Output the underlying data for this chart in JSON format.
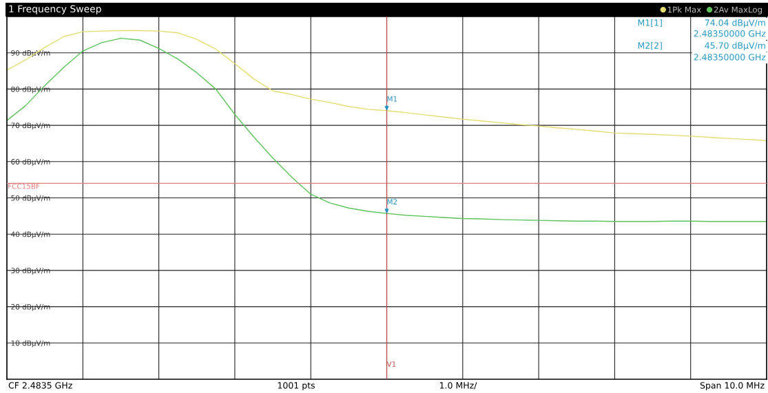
{
  "chart_data": {
    "type": "line",
    "title": "1 Frequency Sweep",
    "categories": [
      null,
      null,
      null,
      null,
      null,
      null,
      null,
      null,
      null,
      null,
      null,
      null,
      null,
      null,
      null,
      null,
      null,
      null,
      null,
      null,
      null,
      null,
      null,
      null,
      null,
      null,
      null,
      null,
      null,
      null,
      null,
      null,
      null,
      null,
      null,
      null,
      null,
      null,
      null,
      null,
      null
    ],
    "series": [
      {
        "name": "1Pk Max",
        "color": "#e3dc6e",
        "values": [
          85.2,
          88.1,
          91.5,
          94.5,
          95.8,
          96.0,
          96.1,
          96.1,
          96.0,
          95.5,
          93.7,
          91.0,
          87.0,
          82.8,
          79.5,
          78.5,
          77.2,
          76.3,
          75.2,
          74.4,
          74.04,
          73.5,
          72.9,
          72.3,
          71.7,
          71.2,
          70.7,
          70.2,
          69.8,
          69.3,
          68.9,
          68.4,
          67.9,
          67.7,
          67.5,
          67.3,
          67.0,
          66.7,
          66.4,
          66.1,
          65.8
        ]
      },
      {
        "name": "2Av MaxLog",
        "color": "#5cc25c",
        "values": [
          71.3,
          75.5,
          81.0,
          86.0,
          90.5,
          92.8,
          94.0,
          93.5,
          91.2,
          88.3,
          84.5,
          80.0,
          73.0,
          66.8,
          61.0,
          55.7,
          51.0,
          48.6,
          47.2,
          46.3,
          45.7,
          45.2,
          44.9,
          44.6,
          44.3,
          44.2,
          44.0,
          43.9,
          43.8,
          43.7,
          43.6,
          43.6,
          43.5,
          43.5,
          43.5,
          43.6,
          43.6,
          43.5,
          43.5,
          43.5,
          43.5
        ]
      }
    ],
    "ylim": [
      0,
      100
    ],
    "yticks": [
      {
        "value": 10,
        "label": "10 dBµV/m"
      },
      {
        "value": 20,
        "label": "20 dBµV/m"
      },
      {
        "value": 30,
        "label": "30 dBµV/m"
      },
      {
        "value": 40,
        "label": "40 dBµV/m"
      },
      {
        "value": 50,
        "label": "50 dBµV/m"
      },
      {
        "value": 60,
        "label": "60 dBµV/m"
      },
      {
        "value": 70,
        "label": "70 dBµV/m"
      },
      {
        "value": 80,
        "label": "80 dBµV/m"
      },
      {
        "value": 90,
        "label": "90 dBµV/m"
      }
    ],
    "tick_labels": "y",
    "grid": true,
    "legend": "top right",
    "ref_lines": [
      {
        "axis": "y",
        "value": 54,
        "label": "FCC15BF",
        "color": "#e08080"
      },
      {
        "axis": "x",
        "label": "V1",
        "color": "#c05050"
      }
    ],
    "annotations": [
      {
        "text": "M1",
        "y": 74.04
      },
      {
        "text": "M2",
        "y": 45.7
      },
      "M1[1]",
      "74.04 dBµV/m",
      "2.48350000 GHz",
      "M2[2]",
      "45.70 dBµV/m",
      "2.48350000 GHz",
      "CF 2.4835 GHz",
      "1001 pts",
      "1.0 MHz/",
      "Span 10.0 MHz"
    ]
  }
}
